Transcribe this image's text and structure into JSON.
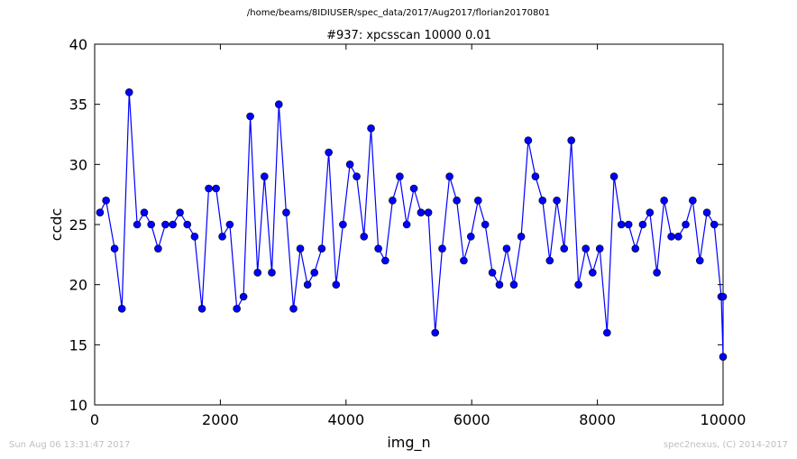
{
  "header": {
    "path": "/home/beams/8IDIUSER/spec_data/2017/Aug2017/florian20170801"
  },
  "footer": {
    "timestamp": "Sun Aug 06 13:31:47 2017",
    "credit": "spec2nexus, (C) 2014-2017"
  },
  "chart_data": {
    "type": "line",
    "title": "#937: xpcsscan 10000 0.01",
    "xlabel": "img_n",
    "ylabel": "ccdc",
    "xlim": [
      0,
      10000
    ],
    "ylim": [
      10,
      40
    ],
    "xticks": [
      0,
      2000,
      4000,
      6000,
      8000,
      10000
    ],
    "yticks": [
      10,
      15,
      20,
      25,
      30,
      35,
      40
    ],
    "grid": false,
    "marker": "circle",
    "color": "#0000ff",
    "x": [
      85,
      181,
      317,
      433,
      549,
      676,
      789,
      899,
      1010,
      1125,
      1244,
      1357,
      1474,
      1591,
      1708,
      1815,
      1932,
      2031,
      2150,
      2262,
      2369,
      2476,
      2593,
      2702,
      2819,
      2931,
      3048,
      3164,
      3272,
      3388,
      3497,
      3614,
      3725,
      3842,
      3951,
      4062,
      4169,
      4286,
      4398,
      4514,
      4625,
      4740,
      4855,
      4966,
      5080,
      5192,
      5310,
      5419,
      5531,
      5647,
      5762,
      5874,
      5987,
      6102,
      6215,
      6328,
      6441,
      6556,
      6671,
      6788,
      6899,
      7014,
      7127,
      7242,
      7354,
      7471,
      7585,
      7698,
      7815,
      7924,
      8038,
      8154,
      8265,
      8382,
      8496,
      8605,
      8722,
      8835,
      8947,
      9062,
      9176,
      9288,
      9405,
      9517,
      9631,
      9743,
      9860,
      9971,
      10000,
      10000
    ],
    "y": [
      26,
      27,
      23,
      18,
      36,
      25,
      26,
      25,
      23,
      25,
      25,
      26,
      25,
      24,
      18,
      28,
      28,
      24,
      25,
      18,
      19,
      34,
      21,
      29,
      21,
      35,
      26,
      18,
      23,
      20,
      21,
      23,
      31,
      20,
      25,
      30,
      29,
      24,
      33,
      23,
      22,
      27,
      29,
      25,
      28,
      26,
      26,
      16,
      23,
      29,
      27,
      22,
      24,
      27,
      25,
      21,
      20,
      23,
      20,
      24,
      32,
      29,
      27,
      22,
      27,
      23,
      32,
      20,
      23,
      21,
      23,
      16,
      29,
      25,
      25,
      23,
      25,
      26,
      21,
      27,
      24,
      24,
      25,
      27,
      22,
      26,
      25,
      19,
      14,
      19
    ]
  }
}
